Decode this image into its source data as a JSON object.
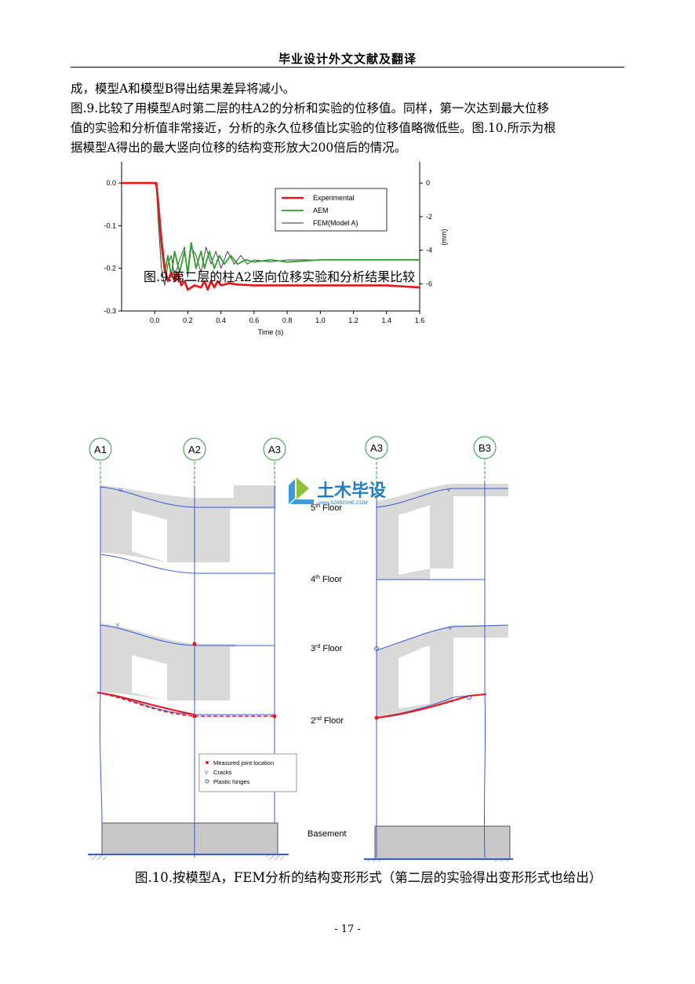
{
  "header": {
    "title": "毕业设计外文文献及翻译"
  },
  "body": {
    "line1": "成，模型A和模型B得出结果差异将减小。",
    "line2": "图.9.比较了用模型A时第二层的柱A2的分析和实验的位移值。同样，第一次达到最大位移",
    "line3": "值的实验和分析值非常接近，分析的永久位移值比实验的位移值略微低些。图.10.所示为根",
    "line4": "据模型A得出的最大竖向位移的结构变形放大200倍后的情况。"
  },
  "figure9": {
    "caption": "图.9.第二层的柱A2竖向位移实验和分析结果比较",
    "chart_data": {
      "type": "line",
      "xlabel": "Time (s)",
      "ylabel": "",
      "y2label": "(mm)",
      "xlim": [
        -0.2,
        1.6
      ],
      "ylim": [
        -0.3,
        0.05
      ],
      "xticks": [
        "0.0",
        "0.2",
        "0.4",
        "0.6",
        "0.8",
        "1.0",
        "1.2",
        "1.4",
        "1.6"
      ],
      "yticks": [
        "0.0",
        "-0.1",
        "-0.2",
        "-0.3"
      ],
      "y2ticks": [
        "0",
        "-2",
        "-4",
        "-6"
      ],
      "legend_position": "top-right",
      "series": [
        {
          "name": "Experimental",
          "color": "#e8141b",
          "x": [
            -0.2,
            -0.05,
            0.0,
            0.01,
            0.02,
            0.04,
            0.06,
            0.08,
            0.1,
            0.12,
            0.14,
            0.16,
            0.18,
            0.2,
            0.24,
            0.28,
            0.3,
            0.32,
            0.34,
            0.36,
            0.38,
            0.4,
            0.45,
            0.5,
            0.6,
            0.8,
            1.0,
            1.2,
            1.4,
            1.6
          ],
          "y": [
            0.0,
            0.0,
            0.0,
            0.0,
            -0.04,
            -0.13,
            -0.2,
            -0.23,
            -0.21,
            -0.23,
            -0.21,
            -0.24,
            -0.23,
            -0.25,
            -0.24,
            -0.245,
            -0.23,
            -0.25,
            -0.23,
            -0.245,
            -0.23,
            -0.24,
            -0.235,
            -0.238,
            -0.24,
            -0.24,
            -0.24,
            -0.24,
            -0.24,
            -0.245
          ]
        },
        {
          "name": "AEM",
          "color": "#2aa02a",
          "x": [
            -0.2,
            -0.05,
            0.0,
            0.01,
            0.02,
            0.04,
            0.06,
            0.08,
            0.1,
            0.12,
            0.15,
            0.18,
            0.2,
            0.22,
            0.25,
            0.28,
            0.3,
            0.33,
            0.36,
            0.39,
            0.42,
            0.46,
            0.5,
            0.55,
            0.6,
            0.7,
            0.8,
            1.0,
            1.2,
            1.4,
            1.6
          ],
          "y": [
            0.0,
            0.0,
            0.0,
            0.0,
            -0.06,
            -0.15,
            -0.21,
            -0.17,
            -0.22,
            -0.16,
            -0.21,
            -0.16,
            -0.21,
            -0.14,
            -0.2,
            -0.16,
            -0.2,
            -0.16,
            -0.2,
            -0.17,
            -0.19,
            -0.17,
            -0.19,
            -0.18,
            -0.185,
            -0.18,
            -0.185,
            -0.18,
            -0.18,
            -0.18,
            -0.18
          ]
        },
        {
          "name": "FEM(Model A)",
          "color": "#333333",
          "x": [
            -0.2,
            -0.05,
            0.0,
            0.01,
            0.02,
            0.04,
            0.06,
            0.08,
            0.1,
            0.12,
            0.15,
            0.18,
            0.2,
            0.22,
            0.25,
            0.28,
            0.31,
            0.34,
            0.37,
            0.4,
            0.44,
            0.48,
            0.52,
            0.56,
            0.6,
            0.7,
            0.8,
            1.0,
            1.2,
            1.4,
            1.6
          ],
          "y": [
            0.0,
            0.0,
            0.0,
            -0.01,
            -0.08,
            -0.2,
            -0.24,
            -0.19,
            -0.17,
            -0.22,
            -0.18,
            -0.15,
            -0.22,
            -0.15,
            -0.17,
            -0.21,
            -0.15,
            -0.19,
            -0.16,
            -0.2,
            -0.16,
            -0.19,
            -0.17,
            -0.19,
            -0.18,
            -0.185,
            -0.18,
            -0.18,
            -0.18,
            -0.18,
            -0.18
          ]
        }
      ]
    }
  },
  "figure10": {
    "caption": "图.10.按模型A，FEM分析的结构变形形式（第二层的实验得出变形形式也给出）",
    "grid_labels": [
      "A1",
      "A2",
      "A3",
      "A3",
      "B3"
    ],
    "floors": {
      "fifth": {
        "num": "5",
        "sup": "th",
        "word": "Floor"
      },
      "fourth": {
        "num": "4",
        "sup": "th",
        "word": "Floor"
      },
      "third": {
        "num": "3",
        "sup": "rd",
        "word": "Floor"
      },
      "second": {
        "num": "2",
        "sup": "nd",
        "word": "Floor"
      }
    },
    "basement": "Basement",
    "legend": [
      "Measured joint location",
      "Cracks",
      "Plastic hinges"
    ],
    "watermark": {
      "text": "土木毕设",
      "url": "www.528BISHE.COM"
    }
  },
  "footer": {
    "page": "- 17 -"
  }
}
